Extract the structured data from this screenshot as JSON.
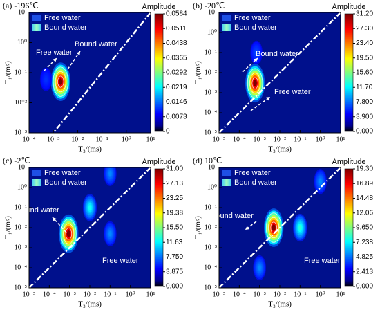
{
  "chart_data": [
    {
      "type": "heatmap",
      "title": "(a) -196℃",
      "xlabel": "T₂/(ms)",
      "ylabel": "T₁/(ms)",
      "log_scale": true,
      "colormap": "jet",
      "background": "#00108c",
      "xlim": [
        0.0001,
        10
      ],
      "ylim": [
        0.001,
        10
      ],
      "xticks": [
        {
          "value": 0.0001,
          "label": "10⁻⁴"
        },
        {
          "value": 0.001,
          "label": "10⁻³"
        },
        {
          "value": 0.01,
          "label": "10⁻²"
        },
        {
          "value": 0.1,
          "label": "10⁻¹"
        },
        {
          "value": 1,
          "label": "10⁰"
        },
        {
          "value": 10,
          "label": "10¹"
        }
      ],
      "yticks": [
        {
          "value": 0.001,
          "label": "10⁻³"
        },
        {
          "value": 0.01,
          "label": "10⁻²"
        },
        {
          "value": 0.1,
          "label": "10⁻¹"
        },
        {
          "value": 1,
          "label": "10⁰"
        },
        {
          "value": 10,
          "label": "10¹"
        }
      ],
      "colorbar_label": "Amplitude",
      "clim": [
        0,
        0.0584
      ],
      "cticks": [
        0,
        0.0073,
        0.0146,
        0.0219,
        0.0292,
        0.0365,
        0.0438,
        0.0511,
        0.0584
      ],
      "legend": [
        "Free water",
        "Bound water"
      ],
      "annotations": [
        "Free water",
        "Bound water"
      ],
      "peaks": [
        {
          "x": 0.002,
          "y": 0.05,
          "value": 0.0584
        },
        {
          "x": 0.0005,
          "y": 0.06,
          "value": 0.01
        }
      ]
    },
    {
      "type": "heatmap",
      "title": "(b) -20℃",
      "xlabel": "T₂/(ms)",
      "ylabel": "T₁/(ms)",
      "log_scale": true,
      "colormap": "jet",
      "background": "#00108c",
      "xlim": [
        1e-05,
        10
      ],
      "ylim": [
        1e-05,
        10
      ],
      "xticks": [
        {
          "value": 1e-05,
          "label": "10⁻⁵"
        },
        {
          "value": 0.0001,
          "label": "10⁻⁴"
        },
        {
          "value": 0.001,
          "label": "10⁻³"
        },
        {
          "value": 0.01,
          "label": "10⁻²"
        },
        {
          "value": 0.1,
          "label": "10⁻¹"
        },
        {
          "value": 1,
          "label": "10⁰"
        },
        {
          "value": 10,
          "label": "10¹"
        }
      ],
      "yticks": [
        {
          "value": 1e-05,
          "label": "10⁻⁵"
        },
        {
          "value": 0.0001,
          "label": "10⁻⁴"
        },
        {
          "value": 0.001,
          "label": "10⁻³"
        },
        {
          "value": 0.01,
          "label": "10⁻²"
        },
        {
          "value": 0.1,
          "label": "10⁻¹"
        },
        {
          "value": 1,
          "label": "10⁰"
        },
        {
          "value": 10,
          "label": "10¹"
        }
      ],
      "colorbar_label": "Amplitude",
      "clim": [
        0,
        31.2
      ],
      "cticks": [
        {
          "value": 0,
          "label": "0.000"
        },
        {
          "value": 3.9,
          "label": "3.900"
        },
        {
          "value": 7.8,
          "label": "7.800"
        },
        {
          "value": 11.7,
          "label": "11.70"
        },
        {
          "value": 15.6,
          "label": "15.60"
        },
        {
          "value": 19.5,
          "label": "19.50"
        },
        {
          "value": 23.4,
          "label": "23.40"
        },
        {
          "value": 27.3,
          "label": "27.30"
        },
        {
          "value": 31.2,
          "label": "31.20"
        }
      ],
      "legend": [
        "Free water",
        "Bound water"
      ],
      "annotations": [
        "Bound water",
        "Free water"
      ],
      "peaks": [
        {
          "x": 0.0006,
          "y": 0.003,
          "value": 31.2
        },
        {
          "x": 0.0007,
          "y": 0.1,
          "value": 6
        }
      ]
    },
    {
      "type": "heatmap",
      "title": "(c) -2℃",
      "xlabel": "T₂/(ms)",
      "ylabel": "T₁/(ms)",
      "log_scale": true,
      "colormap": "jet",
      "background": "#00108c",
      "xlim": [
        1e-05,
        10
      ],
      "ylim": [
        1e-05,
        10
      ],
      "xticks": [
        {
          "value": 1e-05,
          "label": "10⁻⁵"
        },
        {
          "value": 0.0001,
          "label": "10⁻⁴"
        },
        {
          "value": 0.001,
          "label": "10⁻³"
        },
        {
          "value": 0.01,
          "label": "10⁻²"
        },
        {
          "value": 0.1,
          "label": "10⁻¹"
        },
        {
          "value": 1,
          "label": "10⁰"
        },
        {
          "value": 10,
          "label": "10¹"
        }
      ],
      "yticks": [
        {
          "value": 1e-05,
          "label": "10⁻⁵"
        },
        {
          "value": 0.0001,
          "label": "10⁻⁴"
        },
        {
          "value": 0.001,
          "label": "10⁻³"
        },
        {
          "value": 0.01,
          "label": "10⁻²"
        },
        {
          "value": 0.1,
          "label": "10⁻¹"
        },
        {
          "value": 1,
          "label": "10⁰"
        },
        {
          "value": 10,
          "label": "10¹"
        }
      ],
      "colorbar_label": "Amplitude",
      "clim": [
        0,
        31
      ],
      "cticks": [
        {
          "value": 0,
          "label": "0.000"
        },
        3.875,
        {
          "value": 7.75,
          "label": "7.750"
        },
        11.63,
        {
          "value": 15.5,
          "label": "15.50"
        },
        19.38,
        23.25,
        27.13,
        {
          "value": 31,
          "label": "31.00"
        }
      ],
      "legend": [
        "Free water",
        "Bound water"
      ],
      "annotations": [
        "Bound water",
        "Free water"
      ],
      "peaks": [
        {
          "x": 0.0009,
          "y": 0.005,
          "value": 31
        },
        {
          "x": 0.01,
          "y": 0.1,
          "value": 12
        },
        {
          "x": 0.1,
          "y": 5,
          "value": 8
        },
        {
          "x": 0.1,
          "y": 0.005,
          "value": 8
        }
      ]
    },
    {
      "type": "heatmap",
      "title": "(d) 10℃",
      "xlabel": "T₂/(ms)",
      "ylabel": "T₁/(ms)",
      "log_scale": true,
      "colormap": "jet",
      "background": "#00108c",
      "xlim": [
        1e-05,
        10
      ],
      "ylim": [
        1e-05,
        10
      ],
      "xticks": [
        {
          "value": 1e-05,
          "label": "10⁻⁵"
        },
        {
          "value": 0.0001,
          "label": "10⁻⁴"
        },
        {
          "value": 0.001,
          "label": "10⁻³"
        },
        {
          "value": 0.01,
          "label": "10⁻²"
        },
        {
          "value": 0.1,
          "label": "10⁻¹"
        },
        {
          "value": 1,
          "label": "10⁰"
        },
        {
          "value": 10,
          "label": "10¹"
        }
      ],
      "yticks": [
        {
          "value": 1e-05,
          "label": "10⁻⁵"
        },
        {
          "value": 0.0001,
          "label": "10⁻⁴"
        },
        {
          "value": 0.001,
          "label": "10⁻³"
        },
        {
          "value": 0.01,
          "label": "10⁻²"
        },
        {
          "value": 0.1,
          "label": "10⁻¹"
        },
        {
          "value": 1,
          "label": "10⁰"
        },
        {
          "value": 10,
          "label": "10¹"
        }
      ],
      "colorbar_label": "Amplitude",
      "clim": [
        0,
        19.3
      ],
      "cticks": [
        {
          "value": 0,
          "label": "0.000"
        },
        2.413,
        4.825,
        7.238,
        {
          "value": 9.65,
          "label": "9.650"
        },
        12.06,
        14.48,
        16.89,
        {
          "value": 19.3,
          "label": "19.30"
        }
      ],
      "legend": [
        "Free water",
        "Bound water"
      ],
      "annotations": [
        "Bound water",
        "Free water"
      ],
      "peaks": [
        {
          "x": 0.005,
          "y": 0.01,
          "value": 19.3
        },
        {
          "x": 0.1,
          "y": 0.01,
          "value": 8
        },
        {
          "x": 0.001,
          "y": 0.0001,
          "value": 5
        },
        {
          "x": 1,
          "y": 2,
          "value": 5
        }
      ]
    }
  ]
}
